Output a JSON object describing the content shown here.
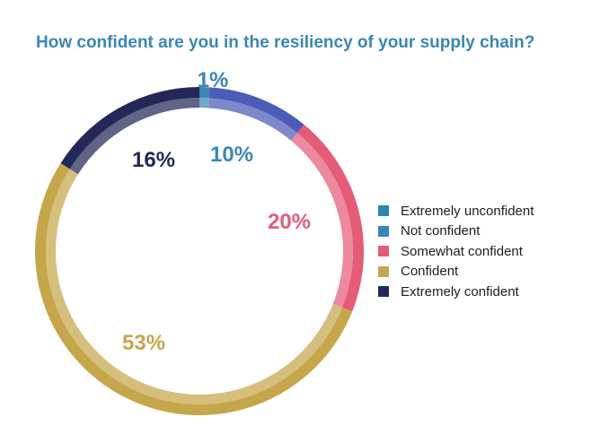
{
  "chart_data": {
    "type": "pie",
    "title": "How confident are you in the resiliency of your supply chain?",
    "categories": [
      "Extremely unconfident",
      "Not confident",
      "Somewhat confident",
      "Confident",
      "Extremely confident"
    ],
    "values": [
      1,
      10,
      20,
      53,
      16
    ],
    "labels": [
      "1%",
      "10%",
      "20%",
      "53%",
      "16%"
    ],
    "colors": [
      "#3a86b5",
      "#4c5cb8",
      "#e45c78",
      "#c6a64a",
      "#232858"
    ],
    "legend_colors": [
      "#2b86b0",
      "#3a86b5",
      "#e45c78",
      "#c6a64a",
      "#232858"
    ],
    "label_colors": [
      "#3a86b5",
      "#3a86b5",
      "#e45c78",
      "#c6a64a",
      "#232858"
    ],
    "legend_position": "right"
  }
}
